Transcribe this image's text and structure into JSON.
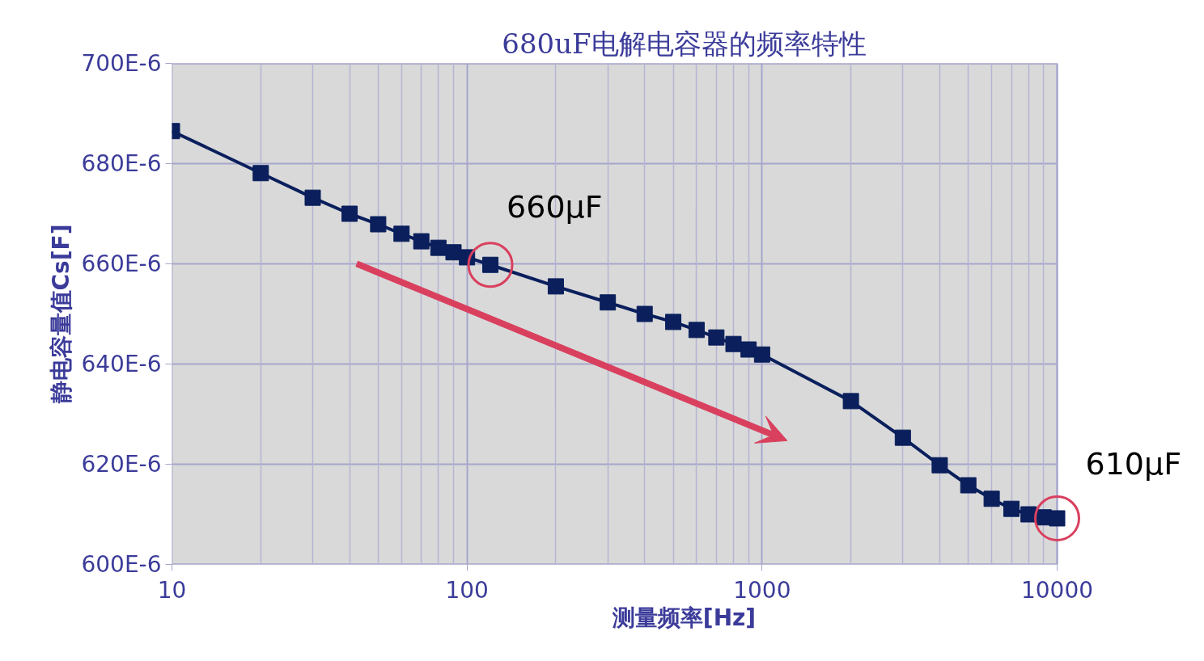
{
  "chart_data": {
    "type": "line",
    "title": "680uF电解电容器的频率特性",
    "xlabel": "测量频率[Hz]",
    "ylabel": "静电容量值Cs[F]",
    "x": [
      10,
      20,
      30,
      40,
      50,
      60,
      70,
      80,
      90,
      100,
      120,
      200,
      300,
      400,
      500,
      600,
      700,
      800,
      900,
      1000,
      2000,
      3000,
      4000,
      5000,
      6000,
      7000,
      8000,
      9000,
      10000
    ],
    "series": [
      {
        "color": "#0a1f5c",
        "values": [
          0.0006865,
          0.0006781,
          0.0006732,
          0.00067,
          0.0006679,
          0.000666,
          0.0006645,
          0.0006632,
          0.0006623,
          0.0006613,
          0.0006598,
          0.0006555,
          0.0006523,
          0.00065,
          0.0006484,
          0.0006468,
          0.0006453,
          0.000644,
          0.0006429,
          0.0006419,
          0.0006326,
          0.0006253,
          0.0006198,
          0.0006158,
          0.0006131,
          0.0006111,
          0.00061,
          0.0006094,
          0.0006092
        ]
      }
    ],
    "xlim": [
      10,
      10000
    ],
    "xticks": [
      10,
      100,
      1000,
      10000
    ],
    "ylim": [
      0.0006,
      0.0007
    ],
    "yticks": [
      {
        "value": 0.0006,
        "label": "600E-6"
      },
      {
        "value": 0.00062,
        "label": "620E-6"
      },
      {
        "value": 0.00064,
        "label": "640E-6"
      },
      {
        "value": 0.00066,
        "label": "660E-6"
      },
      {
        "value": 0.00068,
        "label": "680E-6"
      },
      {
        "value": 0.0007,
        "label": "700E-6"
      }
    ],
    "annotations": [
      {
        "text": "660μF",
        "x": 120,
        "y": 0.0006598
      },
      {
        "text": "610μF",
        "x": 10000,
        "y": 0.0006092
      }
    ],
    "log": "x",
    "grid": true,
    "legend": false,
    "marker": "square",
    "line_style": "solid"
  }
}
